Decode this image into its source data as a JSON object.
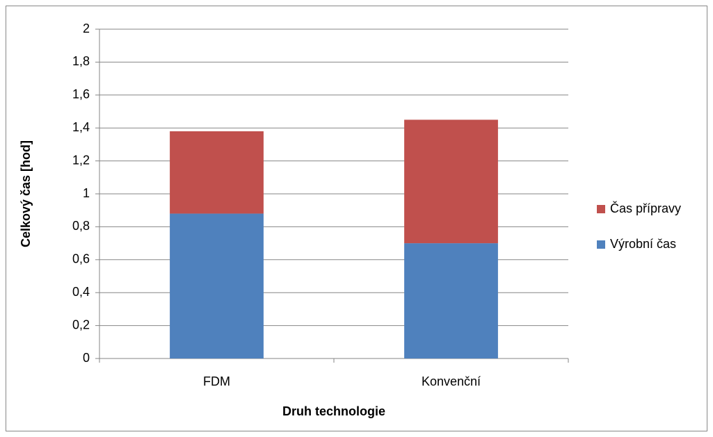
{
  "chart_data": {
    "type": "stacked_bar",
    "categories": [
      "FDM",
      "Konvenční"
    ],
    "series": [
      {
        "name": "Výrobní čas",
        "color": "#4f81bd",
        "values": [
          0.88,
          0.7
        ]
      },
      {
        "name": "Čas přípravy",
        "color": "#c0504d",
        "values": [
          0.5,
          0.75
        ]
      }
    ],
    "x_label": "Druh technologie",
    "y_label": "Celkový čas [hod]",
    "ylim": [
      0,
      2
    ],
    "yticks": [
      0,
      {
        "value": 0.2,
        "label": "0,2"
      },
      {
        "value": 0.4,
        "label": "0,4"
      },
      {
        "value": 0.6,
        "label": "0,6"
      },
      {
        "value": 0.8,
        "label": "0,8"
      },
      1,
      {
        "value": 1.2,
        "label": "1,2"
      },
      {
        "value": 1.4,
        "label": "1,4"
      },
      {
        "value": 1.6,
        "label": "1,6"
      },
      {
        "value": 1.8,
        "label": "1,8"
      },
      2
    ],
    "grid": true,
    "legend": "right"
  }
}
